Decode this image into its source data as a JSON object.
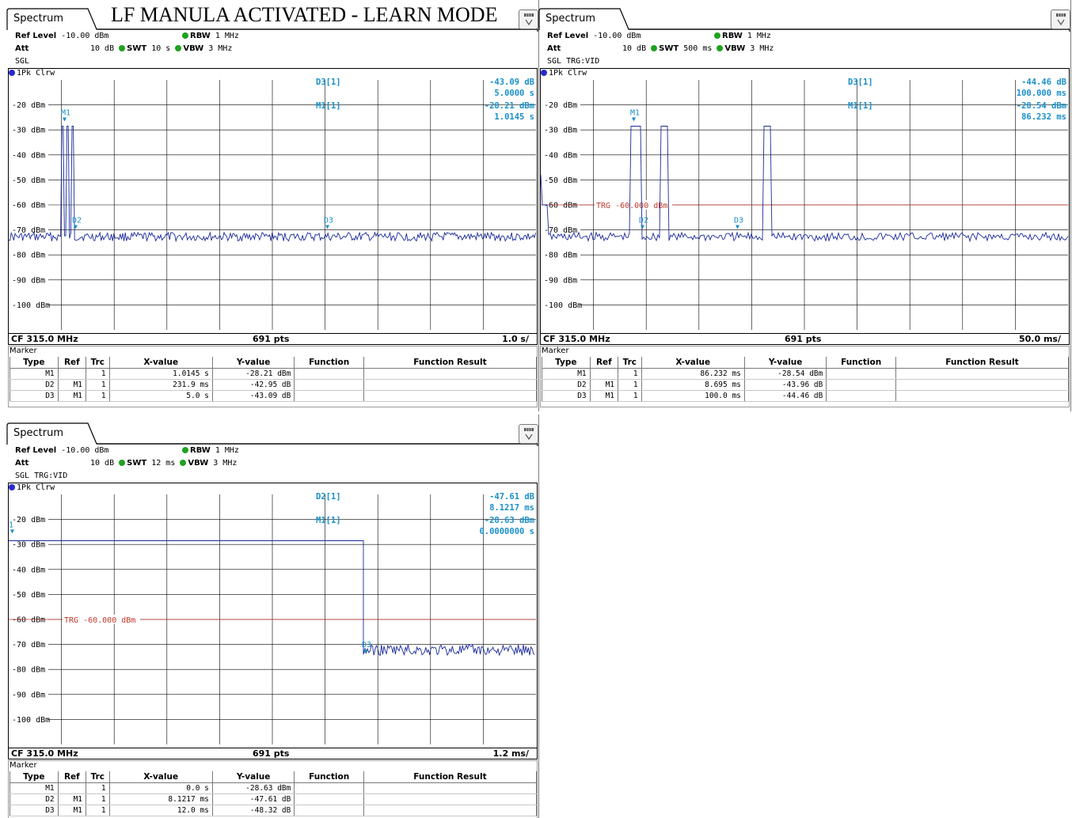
{
  "document_title": "LF MANULA ACTIVATED - LEARN MODE",
  "colors": {
    "trace": "#1a2a9a",
    "marker": "#1a8fc8",
    "trigger_line": "#c0392b",
    "grid": "#000000"
  },
  "panels": [
    {
      "tab_label": "Spectrum",
      "menu_icon": "table-menu-icon",
      "ref_level_label": "Ref Level",
      "ref_level_value": "-10.00 dBm",
      "att_label": "Att",
      "att_value": "10 dB",
      "swt_label": "SWT",
      "swt_value": "10 s",
      "rbw_label": "RBW",
      "rbw_value": "1 MHz",
      "vbw_label": "VBW",
      "vbw_value": "3 MHz",
      "mode": "SGL",
      "trace_label": "1Pk Clrw",
      "y_labels": [
        "-20 dBm",
        "-30 dBm",
        "-40 dBm",
        "-50 dBm",
        "-60 dBm",
        "-70 dBm",
        "-80 dBm",
        "-90 dBm",
        "-100 dBm"
      ],
      "readout": [
        {
          "name": "D3[1]",
          "value": "-43.09 dB",
          "sub": "5.0000 s"
        },
        {
          "name": "M1[1]",
          "value": "-28.21 dBm",
          "sub": "1.0145 s"
        }
      ],
      "trigger_label": "",
      "footer": {
        "center_freq": "CF 315.0 MHz",
        "points": "691 pts",
        "scale": "1.0 s/"
      },
      "marker_title": "Marker",
      "table_headers": [
        "Type",
        "Ref",
        "Trc",
        "X-value",
        "Y-value",
        "Function",
        "Function Result"
      ],
      "markers": [
        {
          "type": "M1",
          "ref": "",
          "trc": "1",
          "x": "1.0145 s",
          "y": "-28.21 dBm"
        },
        {
          "type": "D2",
          "ref": "M1",
          "trc": "1",
          "x": "231.9 ms",
          "y": "-42.95 dB"
        },
        {
          "type": "D3",
          "ref": "M1",
          "trc": "1",
          "x": "5.0 s",
          "y": "-43.09 dB"
        }
      ],
      "plot_marker_labels": [
        "M1",
        "D2",
        "D3"
      ]
    },
    {
      "tab_label": "Spectrum",
      "menu_icon": "table-menu-icon",
      "ref_level_label": "Ref Level",
      "ref_level_value": "-10.00 dBm",
      "att_label": "Att",
      "att_value": "10 dB",
      "swt_label": "SWT",
      "swt_value": "500 ms",
      "rbw_label": "RBW",
      "rbw_value": "1 MHz",
      "vbw_label": "VBW",
      "vbw_value": "3 MHz",
      "mode": "SGL TRG:VID",
      "trace_label": "1Pk Clrw",
      "y_labels": [
        "-20 dBm",
        "-30 dBm",
        "-40 dBm",
        "-50 dBm",
        "-60 dBm",
        "-70 dBm",
        "-80 dBm",
        "-90 dBm",
        "-100 dBm"
      ],
      "readout": [
        {
          "name": "D3[1]",
          "value": "-44.46 dB",
          "sub": "100.000 ms"
        },
        {
          "name": "M1[1]",
          "value": "-28.54 dBm",
          "sub": "86.232 ms"
        }
      ],
      "trigger_label": "TRG -60.000 dBm",
      "footer": {
        "center_freq": "CF 315.0 MHz",
        "points": "691 pts",
        "scale": "50.0 ms/"
      },
      "marker_title": "Marker",
      "table_headers": [
        "Type",
        "Ref",
        "Trc",
        "X-value",
        "Y-value",
        "Function",
        "Function Result"
      ],
      "markers": [
        {
          "type": "M1",
          "ref": "",
          "trc": "1",
          "x": "86.232 ms",
          "y": "-28.54 dBm"
        },
        {
          "type": "D2",
          "ref": "M1",
          "trc": "1",
          "x": "8.695 ms",
          "y": "-43.96 dB"
        },
        {
          "type": "D3",
          "ref": "M1",
          "trc": "1",
          "x": "100.0 ms",
          "y": "-44.46 dB"
        }
      ],
      "plot_marker_labels": [
        "M1",
        "D2",
        "D3"
      ]
    },
    {
      "tab_label": "Spectrum",
      "menu_icon": "table-menu-icon",
      "ref_level_label": "Ref Level",
      "ref_level_value": "-10.00 dBm",
      "att_label": "Att",
      "att_value": "10 dB",
      "swt_label": "SWT",
      "swt_value": "12 ms",
      "rbw_label": "RBW",
      "rbw_value": "1 MHz",
      "vbw_label": "VBW",
      "vbw_value": "3 MHz",
      "mode": "SGL TRG:VID",
      "trace_label": "1Pk Clrw",
      "y_labels": [
        "-20 dBm",
        "-30 dBm",
        "-40 dBm",
        "-50 dBm",
        "-60 dBm",
        "-70 dBm",
        "-80 dBm",
        "-90 dBm",
        "-100 dBm"
      ],
      "readout": [
        {
          "name": "D2[1]",
          "value": "-47.61 dB",
          "sub": "8.1217 ms"
        },
        {
          "name": "M1[1]",
          "value": "-28.63 dBm",
          "sub": "0.0000000 s"
        }
      ],
      "trigger_label": "TRG -60.000 dBm",
      "footer": {
        "center_freq": "CF 315.0 MHz",
        "points": "691 pts",
        "scale": "1.2 ms/"
      },
      "marker_title": "Marker",
      "table_headers": [
        "Type",
        "Ref",
        "Trc",
        "X-value",
        "Y-value",
        "Function",
        "Function Result"
      ],
      "markers": [
        {
          "type": "M1",
          "ref": "",
          "trc": "1",
          "x": "0.0 s",
          "y": "-28.63 dBm"
        },
        {
          "type": "D2",
          "ref": "M1",
          "trc": "1",
          "x": "8.1217 ms",
          "y": "-47.61 dB"
        },
        {
          "type": "D3",
          "ref": "M1",
          "trc": "1",
          "x": "12.0 ms",
          "y": "-48.32 dB"
        }
      ],
      "plot_marker_labels": [
        "1",
        "D3"
      ]
    }
  ]
}
